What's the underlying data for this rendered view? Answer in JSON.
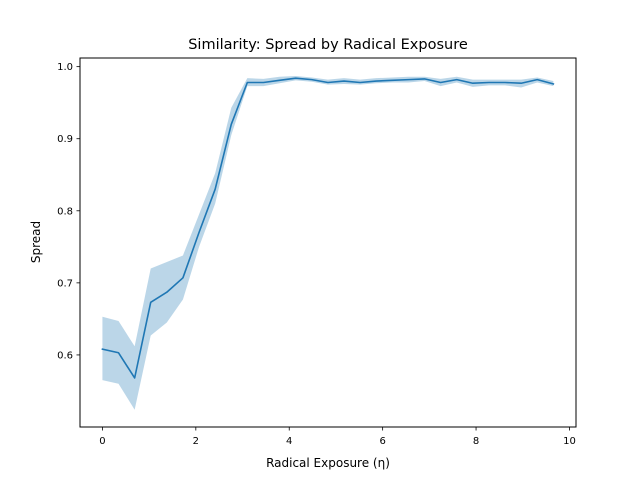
{
  "chart_data": {
    "type": "line",
    "title": "Similarity: Spread by Radical Exposure",
    "xlabel": "Radical Exposure (η)",
    "ylabel": "Spread",
    "xlim": [
      -0.48,
      10.14
    ],
    "ylim": [
      0.5,
      1.012
    ],
    "xticks": [
      0,
      2,
      4,
      6,
      8,
      10
    ],
    "xtick_labels": [
      "0",
      "2",
      "4",
      "6",
      "8",
      "10"
    ],
    "yticks": [
      0.6,
      0.7,
      0.8,
      0.9,
      1.0
    ],
    "ytick_labels": [
      "0.6",
      "0.7",
      "0.8",
      "0.9",
      "1.0"
    ],
    "grid": false,
    "series": [
      {
        "color": "#1f77b4",
        "band_color": "#1f77b4",
        "x": [
          0,
          0.345,
          0.69,
          1.034,
          1.379,
          1.724,
          2.069,
          2.414,
          2.759,
          3.103,
          3.448,
          3.793,
          4.138,
          4.483,
          4.828,
          5.172,
          5.517,
          5.862,
          6.207,
          6.552,
          6.897,
          7.241,
          7.586,
          7.931,
          8.276,
          8.621,
          8.966,
          9.31,
          9.655
        ],
        "y": [
          0.608,
          0.603,
          0.568,
          0.673,
          0.687,
          0.707,
          0.77,
          0.83,
          0.92,
          0.978,
          0.978,
          0.981,
          0.984,
          0.982,
          0.978,
          0.98,
          0.978,
          0.98,
          0.981,
          0.982,
          0.983,
          0.978,
          0.982,
          0.977,
          0.978,
          0.978,
          0.977,
          0.982,
          0.976
        ],
        "lower": [
          0.565,
          0.56,
          0.524,
          0.627,
          0.645,
          0.677,
          0.75,
          0.81,
          0.905,
          0.973,
          0.973,
          0.977,
          0.981,
          0.979,
          0.975,
          0.976,
          0.975,
          0.977,
          0.978,
          0.978,
          0.98,
          0.973,
          0.978,
          0.972,
          0.974,
          0.974,
          0.971,
          0.978,
          0.973
        ],
        "upper": [
          0.653,
          0.647,
          0.612,
          0.72,
          0.729,
          0.738,
          0.795,
          0.852,
          0.943,
          0.984,
          0.983,
          0.986,
          0.987,
          0.985,
          0.982,
          0.984,
          0.982,
          0.984,
          0.985,
          0.986,
          0.986,
          0.983,
          0.986,
          0.982,
          0.982,
          0.982,
          0.982,
          0.985,
          0.98
        ]
      }
    ]
  }
}
